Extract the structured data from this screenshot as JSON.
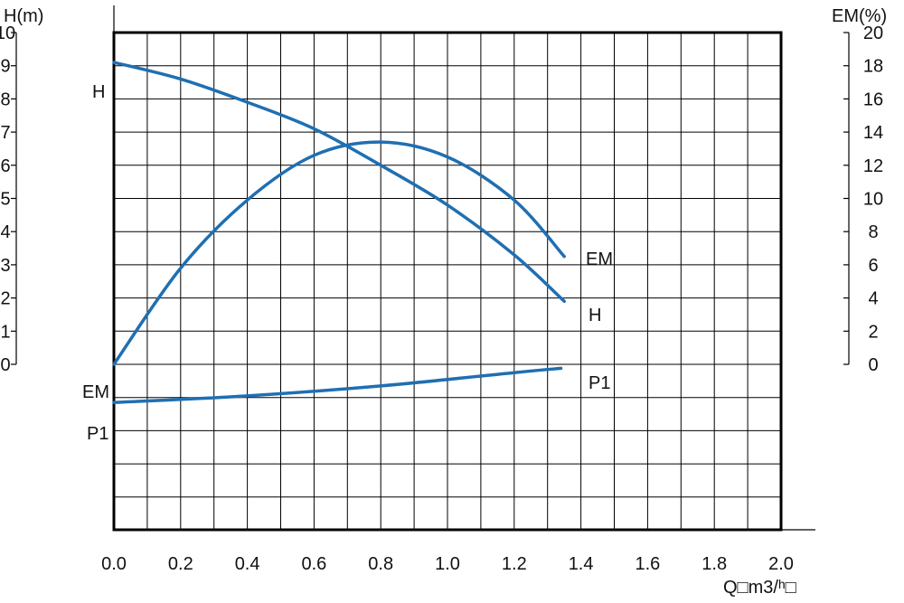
{
  "chart_data": {
    "type": "line",
    "x_axis": {
      "label": "Q□m3/ʰ□",
      "range": [
        0,
        2.0
      ],
      "ticks": [
        "0.0",
        "0.2",
        "0.4",
        "0.6",
        "0.8",
        "1.0",
        "1.2",
        "1.4",
        "1.6",
        "1.8",
        "2.0"
      ]
    },
    "y_axis_left": {
      "label": "H(m)",
      "range": [
        0,
        10
      ],
      "ticks": [
        "0",
        "1",
        "2",
        "3",
        "4",
        "5",
        "6",
        "7",
        "8",
        "9",
        "10"
      ]
    },
    "y_axis_right": {
      "label": "EM(%)",
      "range": [
        0,
        20
      ],
      "ticks": [
        "0",
        "2",
        "4",
        "6",
        "8",
        "10",
        "12",
        "14",
        "16",
        "18",
        "20"
      ]
    },
    "grid": true,
    "series": [
      {
        "name": "H",
        "axis": "left",
        "color": "#1f6fb2",
        "points": [
          [
            0.0,
            9.1
          ],
          [
            0.2,
            8.6
          ],
          [
            0.4,
            7.9
          ],
          [
            0.6,
            7.1
          ],
          [
            0.8,
            6.0
          ],
          [
            1.0,
            4.8
          ],
          [
            1.2,
            3.3
          ],
          [
            1.35,
            1.9
          ]
        ]
      },
      {
        "name": "EM",
        "axis": "right",
        "color": "#1f6fb2",
        "points": [
          [
            0.0,
            0.0
          ],
          [
            0.2,
            5.8
          ],
          [
            0.4,
            9.9
          ],
          [
            0.6,
            12.6
          ],
          [
            0.8,
            13.4
          ],
          [
            1.0,
            12.5
          ],
          [
            1.2,
            9.9
          ],
          [
            1.35,
            6.5
          ]
        ]
      },
      {
        "name": "P1",
        "axis": "none",
        "color": "#1f6fb2",
        "points": [
          [
            0.0,
            -1.15
          ],
          [
            0.4,
            -0.95
          ],
          [
            0.8,
            -0.65
          ],
          [
            1.2,
            -0.25
          ],
          [
            1.34,
            -0.12
          ]
        ]
      }
    ],
    "curve_labels": {
      "h_left": "H",
      "em_left": "EM",
      "p1_left": "P1",
      "em_right": "EM",
      "h_right": "H",
      "p1_right": "P1"
    }
  }
}
